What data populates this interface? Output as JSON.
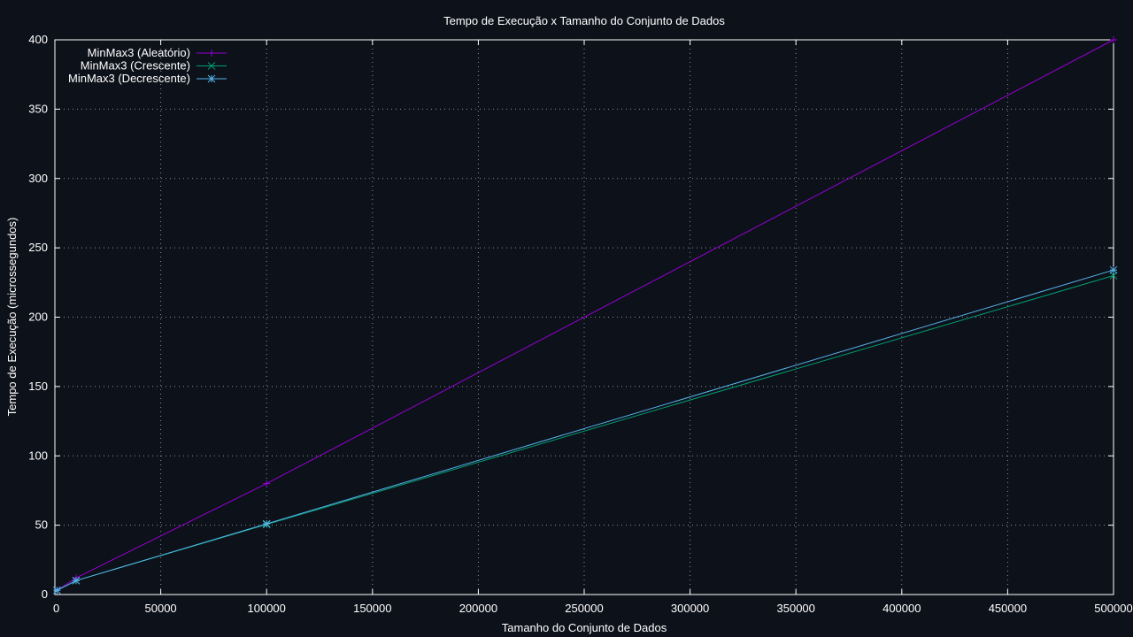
{
  "chart_data": {
    "type": "line",
    "title": "Tempo de Execução x Tamanho do Conjunto de Dados",
    "xlabel": "Tamanho do Conjunto de Dados",
    "ylabel": "Tempo de Execução (microssegundos)",
    "xlim": [
      0,
      500000
    ],
    "ylim": [
      0,
      400
    ],
    "xticks": [
      0,
      50000,
      100000,
      150000,
      200000,
      250000,
      300000,
      350000,
      400000,
      450000,
      500000
    ],
    "yticks": [
      0,
      50,
      100,
      150,
      200,
      250,
      300,
      350,
      400
    ],
    "grid": true,
    "legend_position": "top-left",
    "series": [
      {
        "name": "MinMax3 (Aleatório)",
        "color": "#9400d3",
        "marker": "plus",
        "x": [
          1000,
          10000,
          100000,
          500000
        ],
        "y": [
          3,
          12,
          80,
          400
        ]
      },
      {
        "name": "MinMax3 (Crescente)",
        "color": "#009e73",
        "marker": "cross",
        "x": [
          1000,
          10000,
          100000,
          500000
        ],
        "y": [
          3,
          10,
          50.5,
          230
        ]
      },
      {
        "name": "MinMax3 (Decrescente)",
        "color": "#56b4e9",
        "marker": "star",
        "x": [
          1000,
          10000,
          100000,
          500000
        ],
        "y": [
          3,
          10,
          51,
          234
        ]
      }
    ]
  }
}
